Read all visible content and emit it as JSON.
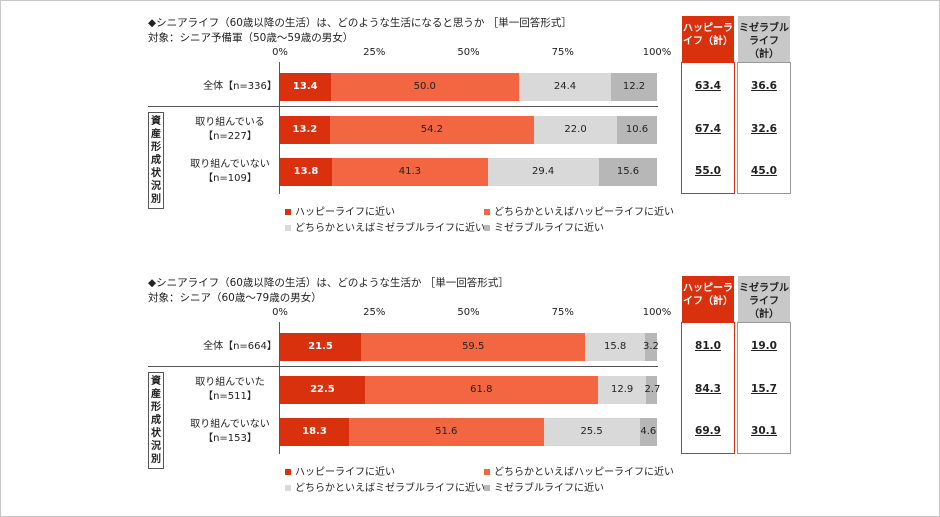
{
  "chart_data": [
    {
      "type": "bar",
      "title": "◆シニアライフ（60歳以降の生活）は、どのような生活になると思うか ［単一回答形式］",
      "subtitle": "対象：シニア予備軍（50歳～59歳の男女）",
      "ticks": [
        "0%",
        "25%",
        "50%",
        "75%",
        "100%"
      ],
      "xlim": [
        0,
        100
      ],
      "categories": [
        "全体【n=336】",
        "取り組んでいる\n【n=227】",
        "取り組んでいない\n【n=109】"
      ],
      "group_label": "資産形成状況別",
      "series": [
        {
          "name": "ハッピーライフに近い",
          "color": "#d9300e",
          "values": [
            13.4,
            13.2,
            13.8
          ]
        },
        {
          "name": "どちらかといえばハッピーライフに近い",
          "color": "#f26641",
          "values": [
            50.0,
            54.2,
            41.3
          ]
        },
        {
          "name": "どちらかといえばミゼラブルライフに近い",
          "color": "#d9d9d9",
          "values": [
            24.4,
            22.0,
            29.4
          ]
        },
        {
          "name": "ミゼラブルライフに近い",
          "color": "#b7b7b7",
          "values": [
            12.2,
            10.6,
            15.6
          ]
        }
      ],
      "summary": {
        "happy_header": "ハッピーライフ（計）",
        "miserable_header": "ミゼラブルライフ（計）",
        "happy": [
          "63.4",
          "67.4",
          "55.0"
        ],
        "miserable": [
          "36.6",
          "32.6",
          "45.0"
        ]
      }
    },
    {
      "type": "bar",
      "title": "◆シニアライフ（60歳以降の生活）は、どのような生活か ［単一回答形式］",
      "subtitle": "対象：シニア（60歳～79歳の男女）",
      "ticks": [
        "0%",
        "25%",
        "50%",
        "75%",
        "100%"
      ],
      "xlim": [
        0,
        100
      ],
      "categories": [
        "全体【n=664】",
        "取り組んでいた\n【n=511】",
        "取り組んでいない\n【n=153】"
      ],
      "group_label": "資産形成状況別",
      "series": [
        {
          "name": "ハッピーライフに近い",
          "color": "#d9300e",
          "values": [
            21.5,
            22.5,
            18.3
          ]
        },
        {
          "name": "どちらかといえばハッピーライフに近い",
          "color": "#f26641",
          "values": [
            59.5,
            61.8,
            51.6
          ]
        },
        {
          "name": "どちらかといえばミゼラブルライフに近い",
          "color": "#d9d9d9",
          "values": [
            15.8,
            12.9,
            25.5
          ]
        },
        {
          "name": "ミゼラブルライフに近い",
          "color": "#b7b7b7",
          "values": [
            3.2,
            2.7,
            4.6
          ]
        }
      ],
      "summary": {
        "happy_header": "ハッピーライフ（計）",
        "miserable_header": "ミゼラブルライフ（計）",
        "happy": [
          "81.0",
          "84.3",
          "69.9"
        ],
        "miserable": [
          "19.0",
          "15.7",
          "30.1"
        ]
      }
    }
  ]
}
